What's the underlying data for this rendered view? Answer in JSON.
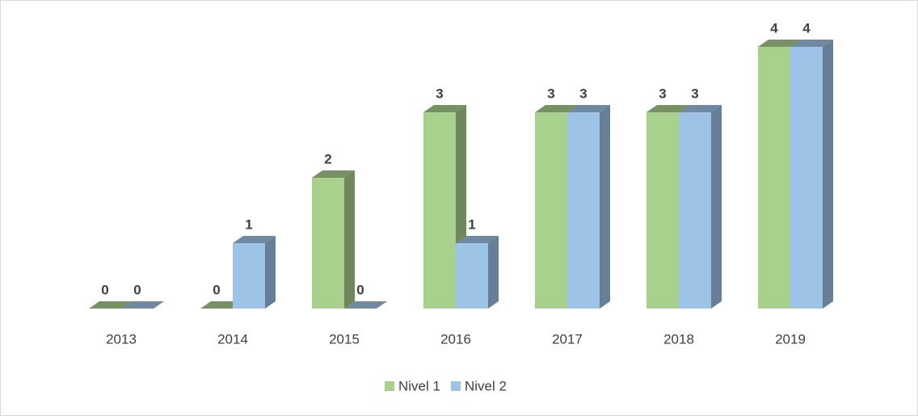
{
  "chart_data": {
    "type": "bar3d",
    "categories": [
      "2013",
      "2014",
      "2015",
      "2016",
      "2017",
      "2018",
      "2019"
    ],
    "series": [
      {
        "name": "Nivel 1",
        "color": "#a9d18e",
        "values": [
          0,
          0,
          2,
          3,
          3,
          3,
          4
        ]
      },
      {
        "name": "Nivel 2",
        "color": "#9dc3e6",
        "values": [
          0,
          1,
          0,
          1,
          3,
          3,
          4
        ]
      }
    ],
    "legend": "bottom"
  }
}
